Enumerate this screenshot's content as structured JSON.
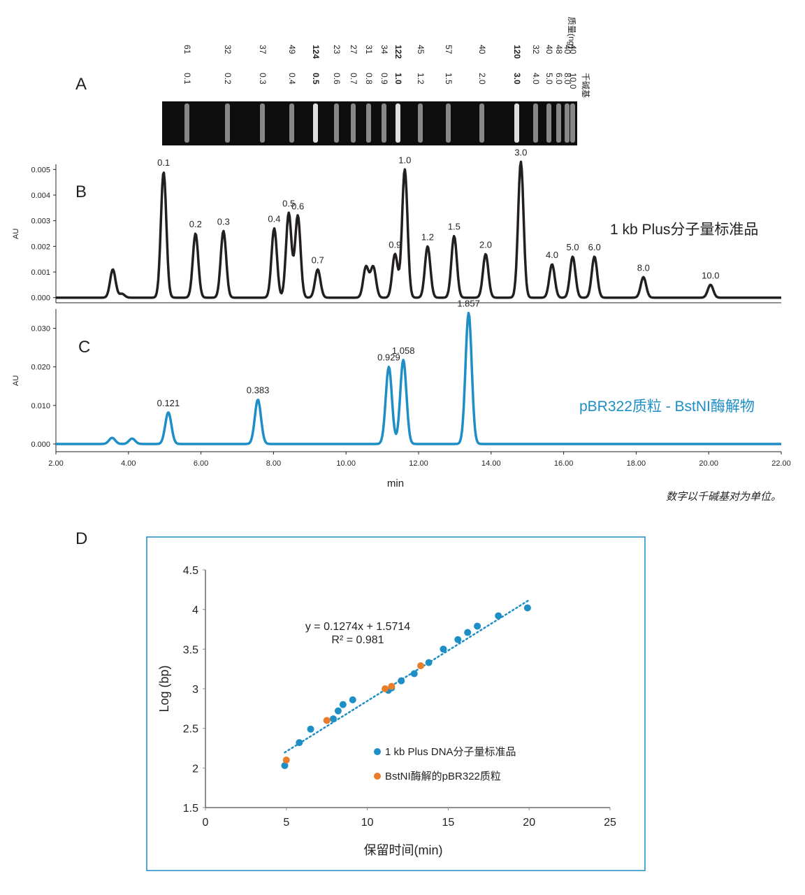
{
  "panel_labels": {
    "a": "A",
    "b": "B",
    "c": "C",
    "d": "D"
  },
  "gel": {
    "header_mass": "质量(ng)",
    "header_size": "千碱基",
    "lanes": [
      {
        "size": "0.1",
        "mass": "61"
      },
      {
        "size": "0.2",
        "mass": "32"
      },
      {
        "size": "0.3",
        "mass": "37"
      },
      {
        "size": "0.4",
        "mass": "49"
      },
      {
        "size": "0.5",
        "mass": "124",
        "bold": true
      },
      {
        "size": "0.6",
        "mass": "23"
      },
      {
        "size": "0.7",
        "mass": "27"
      },
      {
        "size": "0.8",
        "mass": "31"
      },
      {
        "size": "0.9",
        "mass": "34"
      },
      {
        "size": "1.0",
        "mass": "122",
        "bold": true
      },
      {
        "size": "1.2",
        "mass": "45"
      },
      {
        "size": "1.5",
        "mass": "57"
      },
      {
        "size": "2.0",
        "mass": "40"
      },
      {
        "size": "3.0",
        "mass": "120",
        "bold": true
      },
      {
        "size": "4.0",
        "mass": "32"
      },
      {
        "size": "5.0",
        "mass": "40"
      },
      {
        "size": "6.0",
        "mass": "48"
      },
      {
        "size": "8.0",
        "mass": "40"
      },
      {
        "size": "10.0",
        "mass": "40"
      }
    ]
  },
  "chart_data": [
    {
      "id": "B",
      "type": "line",
      "ylabel": "AU",
      "xlim": [
        2,
        22
      ],
      "ylim": [
        -0.0002,
        0.0052
      ],
      "yticks": [
        "0.000",
        "0.001",
        "0.002",
        "0.003",
        "0.004",
        "0.005"
      ],
      "series": [
        {
          "name": "1 kb Plus分子量标准品",
          "color": "#231f20"
        }
      ],
      "peaks": [
        {
          "x": 3.57,
          "y": 0.0011
        },
        {
          "x": 3.82,
          "y": 0.00015
        },
        {
          "x": 4.97,
          "y": 0.0049,
          "label": "0.1"
        },
        {
          "x": 5.85,
          "y": 0.0025,
          "label": "0.2"
        },
        {
          "x": 6.62,
          "y": 0.0026,
          "label": "0.3"
        },
        {
          "x": 8.02,
          "y": 0.0027,
          "label": "0.4"
        },
        {
          "x": 8.42,
          "y": 0.0033,
          "label": "0.5"
        },
        {
          "x": 8.67,
          "y": 0.0032,
          "label": "0.6"
        },
        {
          "x": 9.22,
          "y": 0.0011,
          "label": "0.7"
        },
        {
          "x": 10.55,
          "y": 0.0012
        },
        {
          "x": 10.75,
          "y": 0.0012
        },
        {
          "x": 11.35,
          "y": 0.0017,
          "label": "0.9"
        },
        {
          "x": 11.62,
          "y": 0.005,
          "label": "1.0"
        },
        {
          "x": 12.25,
          "y": 0.002,
          "label": "1.2"
        },
        {
          "x": 12.98,
          "y": 0.0024,
          "label": "1.5"
        },
        {
          "x": 13.85,
          "y": 0.0017,
          "label": "2.0"
        },
        {
          "x": 14.82,
          "y": 0.0053,
          "label": "3.0"
        },
        {
          "x": 15.68,
          "y": 0.0013,
          "label": "4.0"
        },
        {
          "x": 16.25,
          "y": 0.0016,
          "label": "5.0"
        },
        {
          "x": 16.85,
          "y": 0.0016,
          "label": "6.0"
        },
        {
          "x": 18.2,
          "y": 0.0008,
          "label": "8.0"
        },
        {
          "x": 20.05,
          "y": 0.0005,
          "label": "10.0"
        }
      ]
    },
    {
      "id": "C",
      "type": "line",
      "ylabel": "AU",
      "xlabel": "min",
      "xlim": [
        2,
        22
      ],
      "ylim": [
        -0.002,
        0.035
      ],
      "xticks": [
        "2.00",
        "4.00",
        "6.00",
        "8.00",
        "10.00",
        "12.00",
        "14.00",
        "16.00",
        "18.00",
        "20.00",
        "22.00"
      ],
      "yticks": [
        "0.000",
        "0.010",
        "0.020",
        "0.030"
      ],
      "series": [
        {
          "name": "pBR322质粒 - BstNI酶解物",
          "color": "#1d8ec6"
        }
      ],
      "peaks": [
        {
          "x": 3.55,
          "y": 0.0016
        },
        {
          "x": 4.1,
          "y": 0.0014
        },
        {
          "x": 5.1,
          "y": 0.0082,
          "label": "0.121"
        },
        {
          "x": 7.57,
          "y": 0.0115,
          "label": "0.383"
        },
        {
          "x": 11.18,
          "y": 0.02,
          "label": "0.929"
        },
        {
          "x": 11.58,
          "y": 0.0218,
          "label": "1.058"
        },
        {
          "x": 13.38,
          "y": 0.034,
          "label": "1.857"
        }
      ]
    },
    {
      "id": "D",
      "type": "scatter",
      "xlabel": "保留时间(min)",
      "ylabel": "Log (bp)",
      "xlim": [
        0,
        25
      ],
      "ylim": [
        1.5,
        4.5
      ],
      "xticks": [
        "0",
        "5",
        "10",
        "15",
        "20",
        "25"
      ],
      "yticks": [
        "1.5",
        "2",
        "2.5",
        "3",
        "3.5",
        "4",
        "4.5"
      ],
      "equation": "y = 0.1274x + 1.5714",
      "r2": "R² = 0.981",
      "trendline": {
        "slope": 0.1274,
        "intercept": 1.5714,
        "x_range": [
          4.9,
          20
        ],
        "color": "#1d8ec6"
      },
      "series": [
        {
          "name": "1 kb Plus DNA分子量标准品",
          "color": "#1d8ec6",
          "points": [
            [
              4.9,
              2.03
            ],
            [
              5.8,
              2.32
            ],
            [
              6.5,
              2.49
            ],
            [
              7.9,
              2.62
            ],
            [
              8.2,
              2.72
            ],
            [
              8.5,
              2.8
            ],
            [
              9.1,
              2.86
            ],
            [
              11.3,
              2.98
            ],
            [
              11.5,
              3.01
            ],
            [
              12.1,
              3.1
            ],
            [
              12.9,
              3.19
            ],
            [
              13.8,
              3.33
            ],
            [
              14.7,
              3.5
            ],
            [
              15.6,
              3.62
            ],
            [
              16.2,
              3.71
            ],
            [
              16.8,
              3.79
            ],
            [
              18.1,
              3.92
            ],
            [
              19.9,
              4.02
            ]
          ]
        },
        {
          "name": "BstNI酶解的pBR322质粒",
          "color": "#e87d2b",
          "points": [
            [
              5.0,
              2.1
            ],
            [
              7.5,
              2.6
            ],
            [
              11.1,
              3.0
            ],
            [
              11.5,
              3.03
            ],
            [
              13.3,
              3.29
            ]
          ]
        }
      ]
    }
  ],
  "footnote": "数字以千碱基对为单位。"
}
